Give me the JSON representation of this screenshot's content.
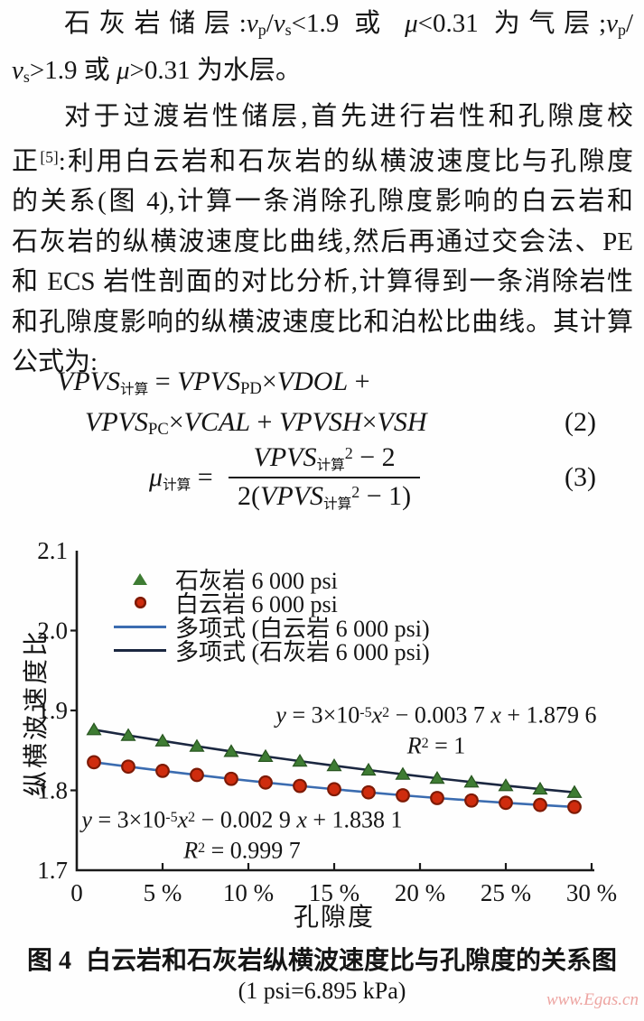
{
  "body": {
    "lines": [
      [
        {
          "t": "石灰岩储层:"
        },
        {
          "t": "v",
          "i": 1
        },
        {
          "t": "p",
          "sb": 1
        },
        {
          "t": "/"
        },
        {
          "t": "v",
          "i": 1
        },
        {
          "t": "s",
          "sb": 1
        },
        {
          "t": "<1.9 或 "
        },
        {
          "t": "μ",
          "i": 1
        },
        {
          "t": "<0.31 为气层;"
        },
        {
          "t": "v",
          "i": 1
        },
        {
          "t": "p",
          "sb": 1
        },
        {
          "t": "/"
        }
      ],
      [
        {
          "t": "v",
          "i": 1
        },
        {
          "t": "s",
          "sb": 1
        },
        {
          "t": ">1.9 或 "
        },
        {
          "t": "μ",
          "i": 1
        },
        {
          "t": ">0.31 为水层。"
        }
      ],
      [
        {
          "t": "对于过渡岩性储层,首先进行岩性和孔隙度校"
        }
      ],
      [
        {
          "t": "正"
        },
        {
          "t": "[5]",
          "sp": 1
        },
        {
          "t": ":利用白云岩和石灰岩的纵横波速度比与孔隙度"
        }
      ],
      [
        {
          "t": "的关系(图 4),计算一条消除孔隙度影响的白云岩和"
        }
      ],
      [
        {
          "t": "石灰岩的纵横波速度比曲线,然后再通过交会法、PE"
        }
      ],
      [
        {
          "t": "和 ECS 岩性剖面的对比分析,计算得到一条消除岩性"
        }
      ],
      [
        {
          "t": "和孔隙度影响的纵横波速度比和泊松比曲线。其计算"
        }
      ],
      [
        {
          "t": "公式为:"
        }
      ]
    ]
  },
  "formulas": {
    "eq2_line1": [
      {
        "t": "VPVS",
        "i": 1
      },
      {
        "t": "计算",
        "csb": 1
      },
      {
        "t": " = "
      },
      {
        "t": "VPVS",
        "i": 1
      },
      {
        "t": "PD",
        "sb": 1
      },
      {
        "t": "×"
      },
      {
        "t": "VDOL",
        "i": 1
      },
      {
        "t": " +"
      }
    ],
    "eq2_line2": [
      {
        "t": "VPVS",
        "i": 1
      },
      {
        "t": "PC",
        "sb": 1
      },
      {
        "t": "×"
      },
      {
        "t": "VCAL",
        "i": 1
      },
      {
        "t": " + "
      },
      {
        "t": "VPVSH",
        "i": 1
      },
      {
        "t": "×"
      },
      {
        "t": "VSH",
        "i": 1
      }
    ],
    "eq2_number": "(2)",
    "eq3_lhs": [
      {
        "t": "μ",
        "i": 1
      },
      {
        "t": "计算",
        "csb": 1
      },
      {
        "t": " ="
      }
    ],
    "eq3_numerator": [
      {
        "t": "VPVS",
        "i": 1
      },
      {
        "t": "计算",
        "csb": 1
      },
      {
        "t": "2",
        "sp": 1
      },
      {
        "t": " − 2"
      }
    ],
    "eq3_denominator": [
      {
        "t": "2("
      },
      {
        "t": "VPVS",
        "i": 1
      },
      {
        "t": "计算",
        "csb": 1
      },
      {
        "t": "2",
        "sp": 1
      },
      {
        "t": " − 1)"
      }
    ],
    "eq3_number": "(3)"
  },
  "rich_annotations": {
    "limestone_eq": [
      {
        "t": "y",
        "i": 1
      },
      {
        "t": " = 3×10"
      },
      {
        "t": "-5",
        "sp": 1
      },
      {
        "t": "x",
        "i": 1
      },
      {
        "t": "2",
        "sp": 1
      },
      {
        "t": " − 0.003 7 "
      },
      {
        "t": "x",
        "i": 1
      },
      {
        "t": " + 1.879 6"
      }
    ],
    "limestone_r2": [
      {
        "t": "R",
        "i": 1
      },
      {
        "t": "2",
        "sp": 1
      },
      {
        "t": " = 1"
      }
    ],
    "dolomite_eq": [
      {
        "t": "y",
        "i": 1
      },
      {
        "t": " = 3×10"
      },
      {
        "t": "-5",
        "sp": 1
      },
      {
        "t": "x",
        "i": 1
      },
      {
        "t": "2",
        "sp": 1
      },
      {
        "t": " − 0.002 9 "
      },
      {
        "t": "x",
        "i": 1
      },
      {
        "t": " + 1.838 1"
      }
    ],
    "dolomite_r2": [
      {
        "t": "R",
        "i": 1
      },
      {
        "t": "2",
        "sp": 1
      },
      {
        "t": " = 0.999 7"
      }
    ]
  },
  "chart_data": {
    "type": "scatter",
    "xlabel": "孔隙度",
    "ylabel": "纵横波速度比",
    "xlim": [
      0,
      30
    ],
    "ylim": [
      1.7,
      2.1
    ],
    "x_ticks": [
      "0",
      "5 %",
      "10 %",
      "15 %",
      "20 %",
      "25 %",
      "30 %"
    ],
    "x_tick_values": [
      0,
      5,
      10,
      15,
      20,
      25,
      30
    ],
    "y_ticks": [
      "2.1",
      "2.0",
      "1.9",
      "1.8",
      "1.7"
    ],
    "y_tick_values": [
      2.1,
      2.0,
      1.9,
      1.8,
      1.7
    ],
    "x": [
      1,
      3,
      5,
      7,
      9,
      11,
      13,
      15,
      17,
      19,
      21,
      23,
      25,
      27,
      29
    ],
    "series": [
      {
        "name": "石灰岩 6 000 psi",
        "trend_name": "多项式 (石灰岩 6 000 psi)",
        "marker": "triangle",
        "marker_color": "#3e7c33",
        "marker_edge": "#27541f",
        "line_color": "#1b2740",
        "equation": "y = 3×10⁻⁵x² − 0.003 7x + 1.879 6",
        "r_squared": "R² = 1",
        "values": [
          1.8759,
          1.8688,
          1.8619,
          1.8552,
          1.8487,
          1.8425,
          1.8366,
          1.8309,
          1.8254,
          1.8201,
          1.8151,
          1.8104,
          1.8059,
          1.8016,
          1.7975
        ]
      },
      {
        "name": "白云岩 6 000 psi",
        "trend_name": "多项式 (白云岩 6 000 psi)",
        "marker": "circle",
        "marker_color": "#cf2c0e",
        "marker_edge": "#7d1a05",
        "line_color": "#3b6cb0",
        "equation": "y = 3×10⁻⁵x² − 0.002 9x + 1.838 1",
        "r_squared": "R² = 0.999 7",
        "values": [
          1.8352,
          1.8297,
          1.8244,
          1.8193,
          1.8144,
          1.8098,
          1.8055,
          1.8014,
          1.7975,
          1.7938,
          1.7904,
          1.7873,
          1.7844,
          1.7817,
          1.7792
        ]
      }
    ],
    "legend_position": "upper-left-inside",
    "grid": false
  },
  "caption": {
    "figure_label": "图 4",
    "title": "白云岩和石灰岩纵横波速度比与孔隙度的关系图",
    "unit_note": "(1 psi=6.895 kPa)"
  },
  "watermark": "www.Egas.cn"
}
